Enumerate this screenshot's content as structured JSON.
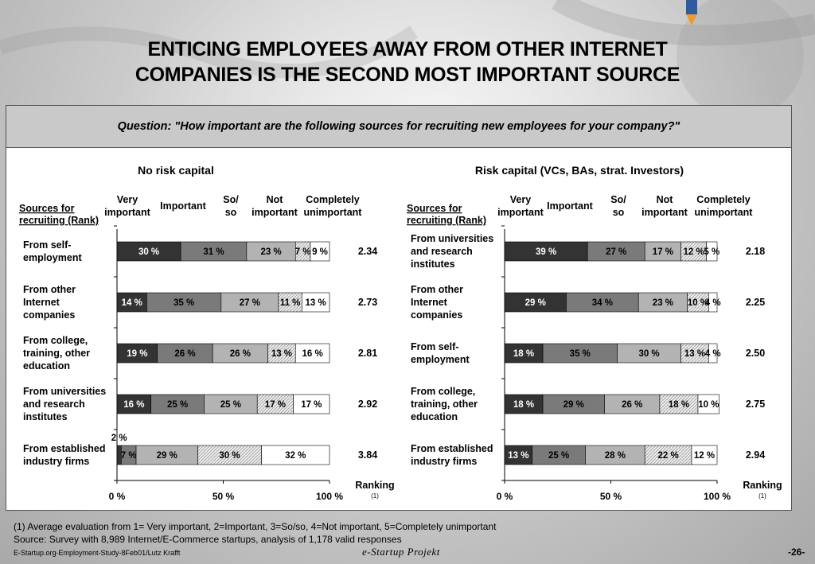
{
  "title_line1": "ENTICING EMPLOYEES AWAY FROM OTHER INTERNET",
  "title_line2": "COMPANIES IS THE SECOND MOST IMPORTANT SOURCE",
  "question": "Question: \"How important are the following sources for recruiting new employees for your company?\"",
  "footnote1": "(1) Average evaluation from 1= Very important, 2=Important, 3=So/so, 4=Not important, 5=Completely unimportant",
  "footnote2": "Source: Survey with 8,989 Internet/E-Commerce startups, analysis of 1,178 valid responses",
  "doc_ref": "E-Startup.org-Employment-Study-8Feb01/Lutz Krafft",
  "brand": "e-Startup Projekt",
  "page_number": "-26-",
  "colors": {
    "very_important": "#333333",
    "important": "#7a7a7a",
    "so_so": "#b3b3b3",
    "not_important": "hatched-light-grey",
    "completely_unimportant": "#ffffff"
  },
  "chart_data": [
    {
      "type": "bar",
      "orientation": "horizontal-stacked-100",
      "title": "No risk capital",
      "row_header": [
        "Sources for",
        "recruiting (Rank)"
      ],
      "legend": [
        {
          "key": "very_important",
          "lines": [
            "Very",
            "important"
          ]
        },
        {
          "key": "important",
          "lines": [
            "Important"
          ]
        },
        {
          "key": "so_so",
          "lines": [
            "So/",
            "so"
          ]
        },
        {
          "key": "not_important",
          "lines": [
            "Not",
            "important"
          ]
        },
        {
          "key": "completely_unimportant",
          "lines": [
            "Completely",
            "unimportant"
          ]
        }
      ],
      "x_ticks": [
        "0 %",
        "50 %",
        "100 %"
      ],
      "xlim": [
        0,
        100
      ],
      "ranking_label": "Ranking",
      "ranking_note": "(1)",
      "rows": [
        {
          "category": [
            "From self-",
            "employment"
          ],
          "values": [
            30,
            31,
            23,
            7,
            9
          ],
          "labels": [
            "30 %",
            "31 %",
            "23 %",
            "7 %",
            "9 %"
          ],
          "ranking": "2.34"
        },
        {
          "category": [
            "From other",
            "Internet",
            "companies"
          ],
          "values": [
            14,
            35,
            27,
            11,
            13
          ],
          "labels": [
            "14 %",
            "35 %",
            "27 %",
            "11 %",
            "13 %"
          ],
          "ranking": "2.73"
        },
        {
          "category": [
            "From college,",
            "training, other",
            "education"
          ],
          "values": [
            19,
            26,
            26,
            13,
            16
          ],
          "labels": [
            "19 %",
            "26 %",
            "26 %",
            "13 %",
            "16 %"
          ],
          "ranking": "2.81"
        },
        {
          "category": [
            "From universities",
            "and research",
            "institutes"
          ],
          "values": [
            16,
            25,
            25,
            17,
            17
          ],
          "labels": [
            "16 %",
            "25 %",
            "25 %",
            "17 %",
            "17 %"
          ],
          "ranking": "2.92"
        },
        {
          "category": [
            "From established",
            "industry firms"
          ],
          "values": [
            2,
            7,
            29,
            30,
            32
          ],
          "labels": [
            "2 %",
            "7 %",
            "29 %",
            "30 %",
            "32 %"
          ],
          "ranking": "3.84"
        }
      ]
    },
    {
      "type": "bar",
      "orientation": "horizontal-stacked-100",
      "title": "Risk capital (VCs, BAs, strat. Investors)",
      "row_header": [
        "Sources for",
        "recruiting (Rank)"
      ],
      "legend": [
        {
          "key": "very_important",
          "lines": [
            "Very",
            "important"
          ]
        },
        {
          "key": "important",
          "lines": [
            "Important"
          ]
        },
        {
          "key": "so_so",
          "lines": [
            "So/",
            "so"
          ]
        },
        {
          "key": "not_important",
          "lines": [
            "Not",
            "important"
          ]
        },
        {
          "key": "completely_unimportant",
          "lines": [
            "Completely",
            "unimportant"
          ]
        }
      ],
      "x_ticks": [
        "0 %",
        "50 %",
        "100 %"
      ],
      "xlim": [
        0,
        100
      ],
      "ranking_label": "Ranking",
      "ranking_note": "(1)",
      "rows": [
        {
          "category": [
            "From universities",
            "and research",
            "institutes"
          ],
          "values": [
            39,
            27,
            17,
            12,
            5
          ],
          "labels": [
            "39 %",
            "27 %",
            "17 %",
            "12 %",
            "5 %"
          ],
          "ranking": "2.18"
        },
        {
          "category": [
            "From other",
            "Internet",
            "companies"
          ],
          "values": [
            29,
            34,
            23,
            10,
            4
          ],
          "labels": [
            "29 %",
            "34 %",
            "23 %",
            "10 %",
            "4 %"
          ],
          "ranking": "2.25"
        },
        {
          "category": [
            "From self-",
            "employment"
          ],
          "values": [
            18,
            35,
            30,
            13,
            4
          ],
          "labels": [
            "18 %",
            "35 %",
            "30 %",
            "13 %",
            "4 %"
          ],
          "ranking": "2.50"
        },
        {
          "category": [
            "From college,",
            "training, other",
            "education"
          ],
          "values": [
            18,
            29,
            26,
            18,
            10
          ],
          "labels": [
            "18 %",
            "29 %",
            "26 %",
            "18 %",
            "10 %"
          ],
          "ranking": "2.75"
        },
        {
          "category": [
            "From established",
            "industry firms"
          ],
          "values": [
            13,
            25,
            28,
            22,
            12
          ],
          "labels": [
            "13 %",
            "25 %",
            "28 %",
            "22 %",
            "12 %"
          ],
          "ranking": "2.94"
        }
      ]
    }
  ]
}
